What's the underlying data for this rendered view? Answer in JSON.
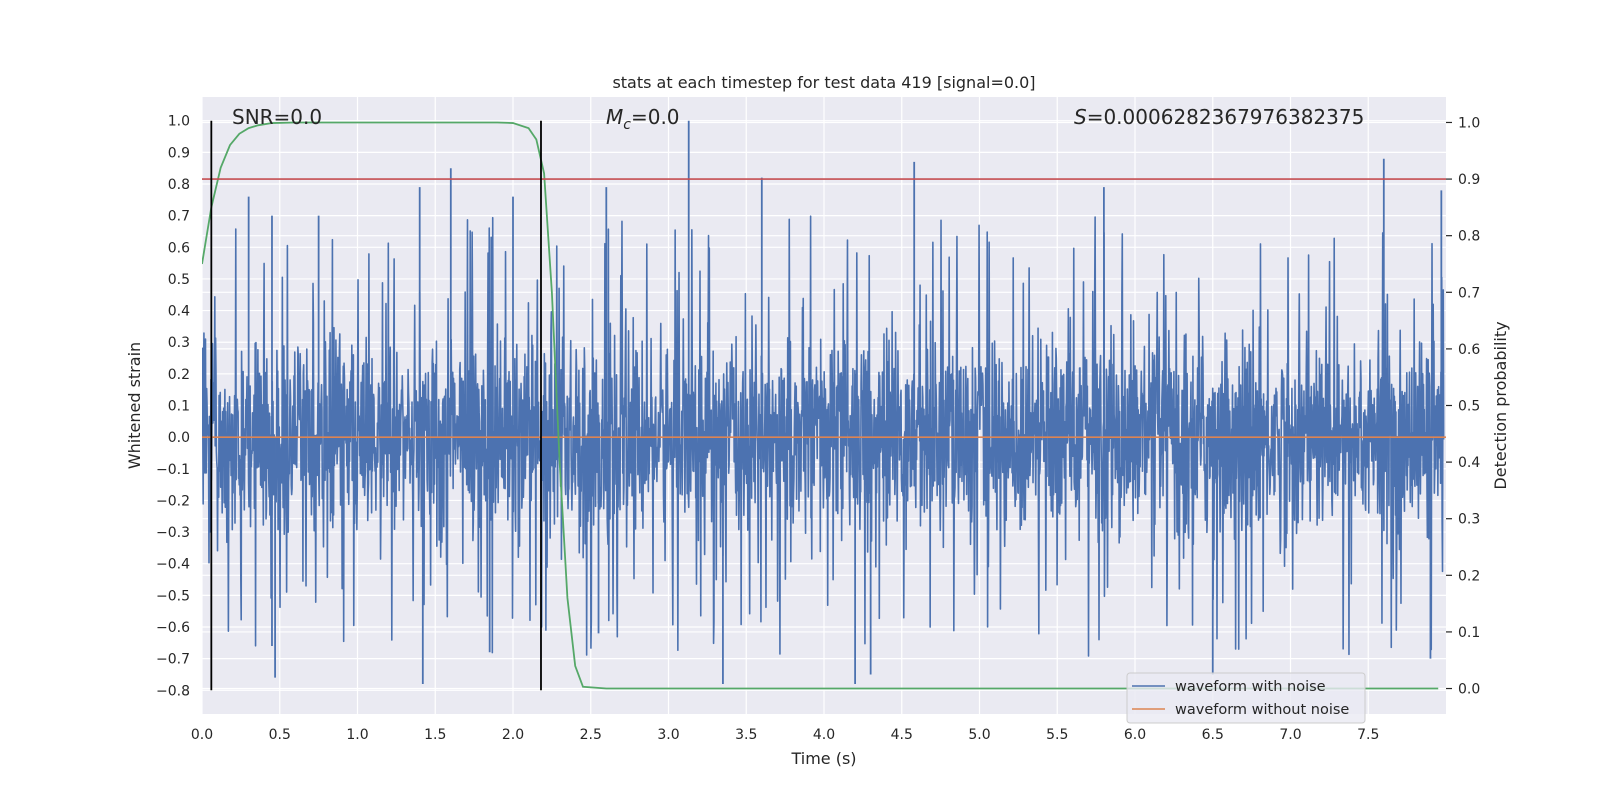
{
  "chart_data": {
    "type": "line",
    "title": "stats at each timestep for test data 419 [signal=0.0]",
    "xlabel": "Time (s)",
    "ylabel": "Whitened strain",
    "y2label": "Detection probability",
    "xlim": [
      0.0,
      8.0
    ],
    "ylim": [
      -0.875,
      1.075
    ],
    "y2lim": [
      -0.045,
      1.045
    ],
    "grid": true,
    "legend_position": "lower-right",
    "x_ticks": [
      "0.0",
      "0.5",
      "1.0",
      "1.5",
      "2.0",
      "2.5",
      "3.0",
      "3.5",
      "4.0",
      "4.5",
      "5.0",
      "5.5",
      "6.0",
      "6.5",
      "7.0",
      "7.5"
    ],
    "y_ticks": [
      "1.0",
      "0.9",
      "0.8",
      "0.7",
      "0.6",
      "0.5",
      "0.4",
      "0.3",
      "0.2",
      "0.1",
      "0.0",
      "−0.1",
      "−0.2",
      "−0.3",
      "−0.4",
      "−0.5",
      "−0.6",
      "−0.7",
      "−0.8"
    ],
    "y2_ticks": [
      "1.0",
      "0.9",
      "0.8",
      "0.7",
      "0.6",
      "0.5",
      "0.4",
      "0.3",
      "0.2",
      "0.1",
      "0.0"
    ],
    "annotations": {
      "snr": "SNR=0.0",
      "mc_symbol": "M",
      "mc_sub": "c",
      "mc_value": "=0.0",
      "s_symbol": "S",
      "s_value": "=0.0006282367976382375"
    },
    "series": [
      {
        "name": "waveform with noise",
        "color": "#4c72b0",
        "noise_envelope": {
          "positive_peaks": [
            [
              0.3,
              0.76
            ],
            [
              0.45,
              0.7
            ],
            [
              0.75,
              0.7
            ],
            [
              1.4,
              0.79
            ],
            [
              1.6,
              0.85
            ],
            [
              2.0,
              0.76
            ],
            [
              2.6,
              0.79
            ],
            [
              3.13,
              1.0
            ],
            [
              3.6,
              0.82
            ],
            [
              4.58,
              0.87
            ],
            [
              5.8,
              0.79
            ],
            [
              7.6,
              0.88
            ],
            [
              7.97,
              0.78
            ]
          ],
          "negative_peaks": [
            [
              0.45,
              -0.66
            ],
            [
              0.47,
              -0.76
            ],
            [
              1.42,
              -0.78
            ],
            [
              1.85,
              -0.68
            ],
            [
              2.55,
              -0.62
            ],
            [
              3.35,
              -0.78
            ],
            [
              4.2,
              -0.78
            ],
            [
              4.3,
              -0.75
            ],
            [
              6.5,
              -0.75
            ],
            [
              7.9,
              -0.7
            ]
          ]
        }
      },
      {
        "name": "waveform without noise",
        "color": "#dd8452",
        "x": [
          0.0,
          8.0
        ],
        "values": [
          0.0,
          0.0
        ]
      },
      {
        "name": "detection probability",
        "axis": "right",
        "color": "#55a868",
        "x": [
          0.0,
          0.06,
          0.12,
          0.18,
          0.24,
          0.3,
          0.36,
          0.45,
          0.6,
          0.9,
          1.4,
          1.9,
          2.0,
          2.1,
          2.15,
          2.2,
          2.25,
          2.3,
          2.35,
          2.4,
          2.45,
          2.6,
          3.0,
          7.95
        ],
        "values": [
          0.75,
          0.85,
          0.92,
          0.96,
          0.98,
          0.99,
          0.995,
          0.999,
          1.0,
          1.0,
          1.0,
          1.0,
          0.999,
          0.99,
          0.97,
          0.91,
          0.7,
          0.4,
          0.16,
          0.04,
          0.003,
          0.0,
          0.0,
          0.0
        ]
      }
    ],
    "threshold_line": {
      "axis": "right",
      "value": 0.9,
      "color": "#c44e52"
    },
    "vertical_markers": {
      "color": "#000000",
      "x": [
        0.06,
        2.18
      ],
      "y_range": [
        -0.8,
        1.0
      ]
    }
  }
}
